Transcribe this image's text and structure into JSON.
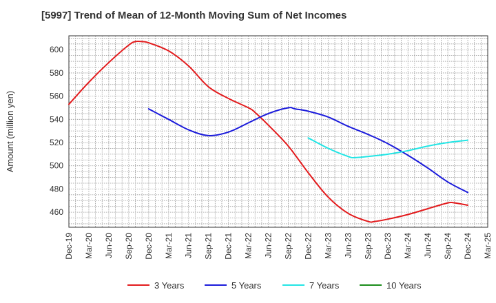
{
  "chart_data": {
    "type": "line",
    "title": "[5997]  Trend of Mean of 12-Month Moving Sum of Net Incomes",
    "ylabel": "Amount (million yen)",
    "xlabel": "",
    "ylim": [
      447,
      612
    ],
    "y_ticks": [
      460,
      480,
      500,
      520,
      540,
      560,
      580,
      600
    ],
    "x_ticks": [
      "Dec-19",
      "Mar-20",
      "Jun-20",
      "Sep-20",
      "Dec-20",
      "Mar-21",
      "Jun-21",
      "Sep-21",
      "Dec-21",
      "Mar-22",
      "Jun-22",
      "Sep-22",
      "Dec-22",
      "Mar-23",
      "Jun-23",
      "Sep-23",
      "Dec-23",
      "Mar-24",
      "Jun-24",
      "Sep-24",
      "Dec-24",
      "Mar-25"
    ],
    "grid": true,
    "legend_position": "bottom",
    "series": [
      {
        "name": "3 Years",
        "color": "#e31a1c",
        "points": [
          [
            "Dec-19",
            553
          ],
          [
            "Mar-20",
            572
          ],
          [
            "Jun-20",
            589
          ],
          [
            "Sep-20",
            604
          ],
          [
            "Oct-20",
            607
          ],
          [
            "Nov-20",
            607
          ],
          [
            "Dec-20",
            606
          ],
          [
            "Mar-21",
            599
          ],
          [
            "Jun-21",
            586
          ],
          [
            "Sep-21",
            568
          ],
          [
            "Dec-21",
            558
          ],
          [
            "Mar-22",
            550
          ],
          [
            "Apr-22",
            546
          ],
          [
            "Jun-22",
            535
          ],
          [
            "Sep-22",
            517
          ],
          [
            "Dec-22",
            494
          ],
          [
            "Mar-23",
            473
          ],
          [
            "Jun-23",
            459
          ],
          [
            "Sep-23",
            452
          ],
          [
            "Oct-23",
            452
          ],
          [
            "Dec-23",
            454
          ],
          [
            "Mar-24",
            458
          ],
          [
            "Jun-24",
            463
          ],
          [
            "Sep-24",
            468
          ],
          [
            "Oct-24",
            468
          ],
          [
            "Dec-24",
            466
          ]
        ]
      },
      {
        "name": "5 Years",
        "color": "#1a1adb",
        "points": [
          [
            "Dec-20",
            549
          ],
          [
            "Mar-21",
            540
          ],
          [
            "Jun-21",
            531
          ],
          [
            "Sep-21",
            526
          ],
          [
            "Dec-21",
            529
          ],
          [
            "Mar-22",
            537
          ],
          [
            "Jun-22",
            545
          ],
          [
            "Sep-22",
            550
          ],
          [
            "Oct-22",
            549
          ],
          [
            "Dec-22",
            547
          ],
          [
            "Mar-23",
            542
          ],
          [
            "Jun-23",
            534
          ],
          [
            "Sep-23",
            527
          ],
          [
            "Dec-23",
            519
          ],
          [
            "Mar-24",
            509
          ],
          [
            "Jun-24",
            498
          ],
          [
            "Sep-24",
            486
          ],
          [
            "Dec-24",
            477
          ]
        ]
      },
      {
        "name": "7 Years",
        "color": "#22e5e5",
        "points": [
          [
            "Dec-22",
            524
          ],
          [
            "Mar-23",
            515
          ],
          [
            "Jun-23",
            508
          ],
          [
            "Jul-23",
            507
          ],
          [
            "Sep-23",
            508
          ],
          [
            "Dec-23",
            510
          ],
          [
            "Mar-24",
            513
          ],
          [
            "Jun-24",
            517
          ],
          [
            "Sep-24",
            520
          ],
          [
            "Dec-24",
            522
          ]
        ]
      },
      {
        "name": "10 Years",
        "color": "#1a8c1a",
        "points": []
      }
    ]
  }
}
